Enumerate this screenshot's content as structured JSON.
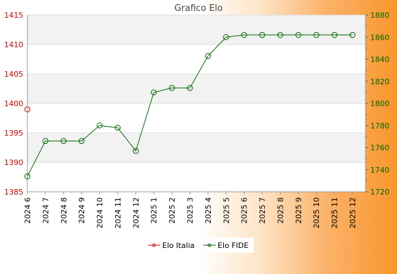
{
  "chart_data": {
    "type": "line",
    "title": "Grafico Elo",
    "xlabel": "",
    "ylabel": "",
    "categories": [
      "2024 6",
      "2024 7",
      "2024 8",
      "2024 9",
      "2024 10",
      "2024 11",
      "2024 12",
      "2025 1",
      "2025 2",
      "2025 3",
      "2025 4",
      "2025 5",
      "2025 6",
      "2025 7",
      "2025 8",
      "2025 9",
      "2025 10",
      "2025 11",
      "2025 12"
    ],
    "ylim_left": [
      1385,
      1415
    ],
    "yticks_left": [
      1385,
      1390,
      1395,
      1400,
      1405,
      1410,
      1415
    ],
    "ylim_right": [
      1720,
      1880
    ],
    "yticks_right": [
      1720,
      1740,
      1760,
      1780,
      1800,
      1820,
      1840,
      1860,
      1880
    ],
    "grid": true,
    "legend_position": "bottom",
    "series": [
      {
        "name": "Elo Italia",
        "axis": "left",
        "color": "#e00000",
        "values": [
          1399,
          null,
          null,
          null,
          null,
          null,
          null,
          null,
          null,
          null,
          null,
          null,
          null,
          null,
          null,
          null,
          null,
          null,
          null
        ]
      },
      {
        "name": "Elo FIDE",
        "axis": "right",
        "color": "#006600",
        "values": [
          1734,
          1766,
          1766,
          1766,
          1780,
          1778,
          1757,
          1810,
          1814,
          1814,
          1843,
          1860,
          1862,
          1862,
          1862,
          1862,
          1862,
          1862,
          1862
        ]
      }
    ]
  },
  "colors": {
    "left_axis_text": "#d40000",
    "right_axis_text": "#006600",
    "band": "#f2f2f2",
    "grid": "#dddddd"
  }
}
